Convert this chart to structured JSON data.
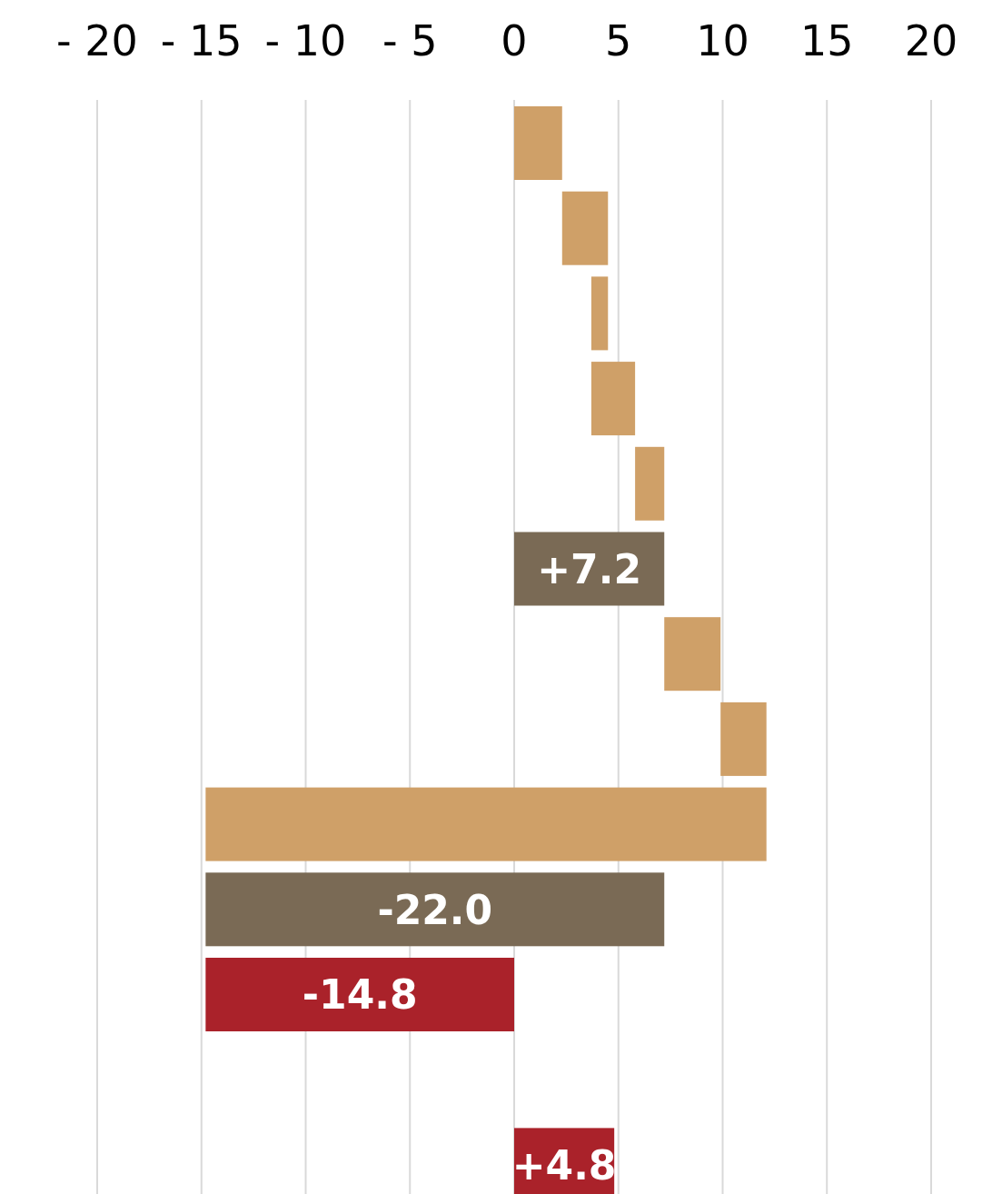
{
  "chart_data": {
    "type": "bar",
    "orientation": "horizontal",
    "categories": [
      null,
      null,
      null,
      null,
      null,
      null,
      null,
      null,
      null,
      null,
      null,
      null,
      null
    ],
    "base": [
      0,
      2.3,
      3.7,
      3.7,
      5.8,
      0,
      7.2,
      9.9,
      -14.8,
      7.2,
      0,
      null,
      0
    ],
    "values": [
      2.3,
      2.2,
      0.8,
      2.1,
      1.4,
      7.2,
      2.7,
      2.2,
      26.9,
      -22.0,
      -14.8,
      null,
      4.8
    ],
    "colors": [
      "#cfa068",
      "#cfa068",
      "#cfa068",
      "#cfa068",
      "#cfa068",
      "#7a6a55",
      "#cfa068",
      "#cfa068",
      "#cfa068",
      "#7a6a55",
      "#aa222a",
      null,
      "#aa222a"
    ],
    "value_labels": [
      null,
      null,
      null,
      null,
      null,
      "+7.2",
      null,
      null,
      null,
      "-22.0",
      "-14.8",
      null,
      "+4.8"
    ],
    "xlim": [
      -20,
      20
    ],
    "xticks": [
      {
        "value": -20,
        "label": "- 20"
      },
      {
        "value": -15,
        "label": "- 15"
      },
      {
        "value": -10,
        "label": "- 10"
      },
      {
        "value": -5,
        "label": "- 5"
      },
      0,
      5,
      10,
      15,
      20
    ],
    "grid": "x"
  }
}
